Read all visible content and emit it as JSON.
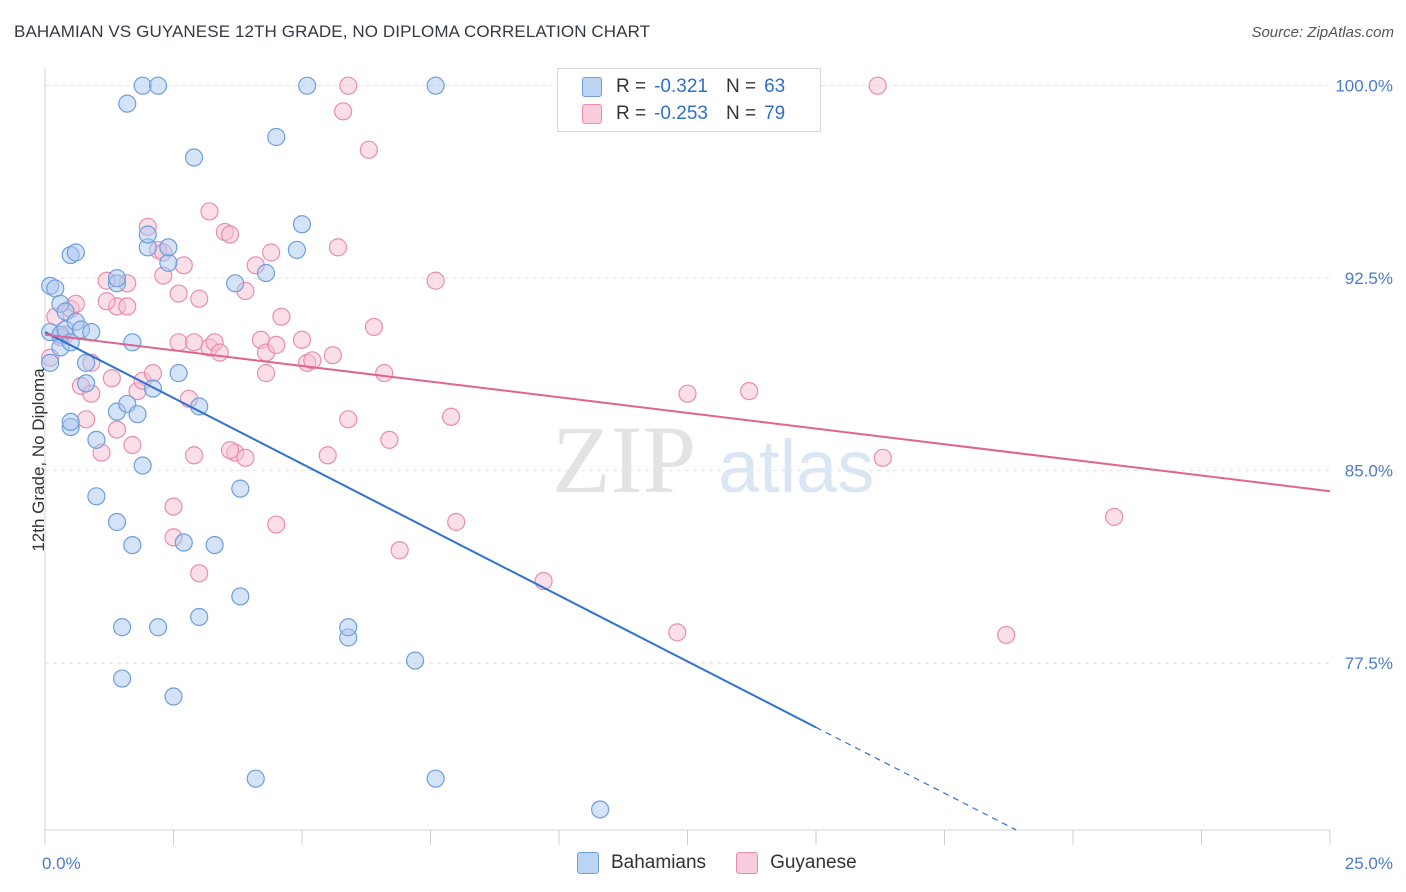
{
  "title": "BAHAMIAN VS GUYANESE 12TH GRADE, NO DIPLOMA CORRELATION CHART",
  "source": "Source: ZipAtlas.com",
  "watermark": {
    "zip": "ZIP",
    "atlas": "atlas"
  },
  "legend_top": {
    "rows": [
      {
        "r_label": "R =",
        "r_value": "-0.321",
        "n_label": "N =",
        "n_value": "63"
      },
      {
        "r_label": "R =",
        "r_value": "-0.253",
        "n_label": "N =",
        "n_value": "79"
      }
    ]
  },
  "colors": {
    "blue_fill": "#a9c8f0",
    "blue_stroke": "#6e9fdc",
    "blue_line": "#2f72d2",
    "pink_fill": "#f7bfd2",
    "pink_stroke": "#e98daf",
    "pink_line": "#e0648e",
    "tick_text": "#4a7cc9",
    "grid": "#e3e3e3"
  },
  "chart_data": {
    "type": "scatter",
    "title": "BAHAMIAN VS GUYANESE 12TH GRADE, NO DIPLOMA CORRELATION CHART",
    "xlabel": "",
    "ylabel": "12th Grade, No Diploma",
    "xlim": [
      0,
      25
    ],
    "ylim": [
      71.0,
      101.0
    ],
    "x_tick_labels": [
      "0.0%",
      "25.0%"
    ],
    "y_ticks": [
      77.5,
      85.0,
      92.5,
      100.0
    ],
    "y_tick_labels": [
      "77.5%",
      "85.0%",
      "92.5%",
      "100.0%"
    ],
    "grid": true,
    "legend_placement": "bottom-center",
    "series": [
      {
        "name": "Bahamians",
        "color": "#a9c8f0",
        "points": [
          [
            0.1,
            89.2
          ],
          [
            0.1,
            90.4
          ],
          [
            0.1,
            92.2
          ],
          [
            0.2,
            92.1
          ],
          [
            0.3,
            91.5
          ],
          [
            0.3,
            90.3
          ],
          [
            0.3,
            89.8
          ],
          [
            0.4,
            91.2
          ],
          [
            0.4,
            90.5
          ],
          [
            0.5,
            90.0
          ],
          [
            0.5,
            86.7
          ],
          [
            0.5,
            86.9
          ],
          [
            0.5,
            93.4
          ],
          [
            0.6,
            90.8
          ],
          [
            0.6,
            93.5
          ],
          [
            0.7,
            90.5
          ],
          [
            0.8,
            89.2
          ],
          [
            0.8,
            88.4
          ],
          [
            0.9,
            90.4
          ],
          [
            1.0,
            84.0
          ],
          [
            1.0,
            86.2
          ],
          [
            1.4,
            92.3
          ],
          [
            1.4,
            92.5
          ],
          [
            1.4,
            83.0
          ],
          [
            1.4,
            87.3
          ],
          [
            1.5,
            78.9
          ],
          [
            1.5,
            76.9
          ],
          [
            1.6,
            99.3
          ],
          [
            1.6,
            87.6
          ],
          [
            1.7,
            82.1
          ],
          [
            1.7,
            90.0
          ],
          [
            1.8,
            87.2
          ],
          [
            1.9,
            100.0
          ],
          [
            1.9,
            85.2
          ],
          [
            2.0,
            93.7
          ],
          [
            2.0,
            94.2
          ],
          [
            2.1,
            88.2
          ],
          [
            2.2,
            78.9
          ],
          [
            2.4,
            93.1
          ],
          [
            2.4,
            93.7
          ],
          [
            2.5,
            76.2
          ],
          [
            2.6,
            88.8
          ],
          [
            2.7,
            82.2
          ],
          [
            2.9,
            97.2
          ],
          [
            3.0,
            87.5
          ],
          [
            3.0,
            79.3
          ],
          [
            3.3,
            82.1
          ],
          [
            3.7,
            92.3
          ],
          [
            3.8,
            80.1
          ],
          [
            3.8,
            84.3
          ],
          [
            4.1,
            73.0
          ],
          [
            4.3,
            92.7
          ],
          [
            4.5,
            98.0
          ],
          [
            4.9,
            93.6
          ],
          [
            5.0,
            94.6
          ],
          [
            5.1,
            100.0
          ],
          [
            5.9,
            78.5
          ],
          [
            5.9,
            78.9
          ],
          [
            7.2,
            77.6
          ],
          [
            7.6,
            100.0
          ],
          [
            7.6,
            73.0
          ],
          [
            10.8,
            71.8
          ],
          [
            2.2,
            100.0
          ]
        ],
        "trend": {
          "x": [
            0.0,
            15.0
          ],
          "y": [
            90.4,
            75.0
          ],
          "dashed_to": [
            20.0,
            70.0
          ]
        }
      },
      {
        "name": "Guyanese",
        "color": "#f7bfd2",
        "points": [
          [
            0.1,
            89.4
          ],
          [
            0.2,
            91.0
          ],
          [
            0.4,
            90.3
          ],
          [
            0.5,
            91.3
          ],
          [
            0.6,
            91.5
          ],
          [
            0.7,
            88.3
          ],
          [
            0.8,
            87.0
          ],
          [
            0.9,
            88.0
          ],
          [
            0.9,
            89.2
          ],
          [
            1.1,
            85.7
          ],
          [
            1.2,
            92.4
          ],
          [
            1.3,
            88.6
          ],
          [
            1.4,
            91.4
          ],
          [
            1.4,
            86.6
          ],
          [
            1.6,
            92.3
          ],
          [
            1.6,
            91.4
          ],
          [
            1.7,
            86.0
          ],
          [
            1.8,
            88.1
          ],
          [
            1.9,
            88.5
          ],
          [
            2.0,
            94.5
          ],
          [
            2.1,
            88.8
          ],
          [
            2.2,
            93.6
          ],
          [
            2.3,
            93.5
          ],
          [
            2.3,
            92.6
          ],
          [
            2.5,
            83.6
          ],
          [
            2.5,
            82.4
          ],
          [
            2.6,
            90.0
          ],
          [
            2.7,
            93.0
          ],
          [
            2.8,
            87.8
          ],
          [
            2.9,
            85.6
          ],
          [
            3.0,
            81.0
          ],
          [
            3.0,
            91.7
          ],
          [
            3.2,
            89.8
          ],
          [
            3.2,
            95.1
          ],
          [
            3.3,
            90.0
          ],
          [
            3.4,
            89.6
          ],
          [
            3.5,
            94.3
          ],
          [
            3.6,
            94.2
          ],
          [
            3.7,
            85.7
          ],
          [
            3.9,
            85.5
          ],
          [
            3.9,
            92.0
          ],
          [
            4.1,
            93.0
          ],
          [
            4.2,
            90.1
          ],
          [
            4.3,
            89.6
          ],
          [
            4.3,
            88.8
          ],
          [
            4.4,
            93.5
          ],
          [
            4.5,
            82.9
          ],
          [
            4.6,
            91.0
          ],
          [
            5.0,
            90.1
          ],
          [
            5.1,
            89.2
          ],
          [
            5.2,
            89.3
          ],
          [
            5.5,
            85.6
          ],
          [
            5.6,
            89.5
          ],
          [
            5.7,
            93.7
          ],
          [
            5.8,
            99.0
          ],
          [
            5.9,
            100.0
          ],
          [
            5.9,
            87.0
          ],
          [
            6.3,
            97.5
          ],
          [
            6.4,
            90.6
          ],
          [
            6.6,
            88.8
          ],
          [
            6.7,
            86.2
          ],
          [
            6.9,
            81.9
          ],
          [
            7.6,
            92.4
          ],
          [
            7.9,
            87.1
          ],
          [
            8.0,
            83.0
          ],
          [
            9.7,
            80.7
          ],
          [
            12.3,
            78.7
          ],
          [
            12.5,
            88.0
          ],
          [
            13.7,
            88.1
          ],
          [
            16.2,
            100.0
          ],
          [
            16.3,
            85.5
          ],
          [
            18.7,
            78.6
          ],
          [
            20.8,
            83.2
          ],
          [
            1.2,
            91.6
          ],
          [
            2.6,
            91.9
          ],
          [
            3.6,
            85.8
          ],
          [
            0.3,
            90.2
          ],
          [
            2.9,
            90.0
          ],
          [
            4.5,
            89.9
          ]
        ],
        "trend": {
          "x": [
            0.0,
            25.0
          ],
          "y": [
            90.3,
            84.2
          ]
        }
      }
    ]
  }
}
